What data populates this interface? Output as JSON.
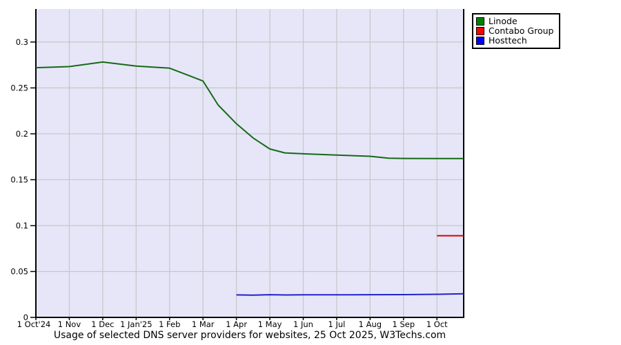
{
  "page": {
    "background": "#FFFFFF"
  },
  "chart_data": {
    "type": "line",
    "title": "Usage of selected DNS server providers for websites, 25 Oct 2025, W3Techs.com",
    "xlabel": "",
    "ylabel": "",
    "x_unit": "months since 1 Oct 2024",
    "xlim_months": [
      0,
      12.8
    ],
    "ylim": [
      0,
      0.336
    ],
    "grid": true,
    "plot_bg": "#E6E6F8",
    "grid_color": "#C6C6C6",
    "axis_color": "#000000",
    "legend_position": "top-right-outside",
    "x_ticks": [
      {
        "m": 0,
        "label": "1 Oct'24"
      },
      {
        "m": 1,
        "label": "1 Nov"
      },
      {
        "m": 2,
        "label": "1 Dec"
      },
      {
        "m": 3,
        "label": "1 Jan'25"
      },
      {
        "m": 4,
        "label": "1 Feb"
      },
      {
        "m": 5,
        "label": "1 Mar"
      },
      {
        "m": 6,
        "label": "1 Apr"
      },
      {
        "m": 7,
        "label": "1 May"
      },
      {
        "m": 8,
        "label": "1 Jun"
      },
      {
        "m": 9,
        "label": "1 Jul"
      },
      {
        "m": 10,
        "label": "1 Aug"
      },
      {
        "m": 11,
        "label": "1 Sep"
      },
      {
        "m": 12,
        "label": "1 Oct"
      }
    ],
    "y_ticks": [
      {
        "value": 0,
        "label": "0"
      },
      {
        "value": 0.05,
        "label": "0.05"
      },
      {
        "value": 0.1,
        "label": "0.1"
      },
      {
        "value": 0.15,
        "label": "0.15"
      },
      {
        "value": 0.2,
        "label": "0.2"
      },
      {
        "value": 0.25,
        "label": "0.25"
      },
      {
        "value": 0.3,
        "label": "0.3"
      }
    ],
    "series": [
      {
        "name": "Linode",
        "color": "#156915",
        "legend_color": "#008000",
        "points": [
          [
            0,
            0.272
          ],
          [
            1,
            0.2732
          ],
          [
            2,
            0.2782
          ],
          [
            3,
            0.2738
          ],
          [
            4,
            0.2715
          ],
          [
            4.65,
            0.2625
          ],
          [
            5,
            0.2575
          ],
          [
            5.45,
            0.2315
          ],
          [
            6,
            0.211
          ],
          [
            6.5,
            0.1955
          ],
          [
            7,
            0.1835
          ],
          [
            7.45,
            0.1792
          ],
          [
            8,
            0.1782
          ],
          [
            9,
            0.1768
          ],
          [
            10,
            0.1755
          ],
          [
            10.55,
            0.1735
          ],
          [
            11,
            0.1732
          ],
          [
            12,
            0.173
          ],
          [
            12.8,
            0.173
          ]
        ]
      },
      {
        "name": "Contabo Group",
        "color": "#D40000",
        "legend_color": "#FF0000",
        "points": [
          [
            12,
            0.089
          ],
          [
            12.8,
            0.089
          ]
        ]
      },
      {
        "name": "Hosttech",
        "color": "#2121CC",
        "legend_color": "#0000FF",
        "points": [
          [
            6,
            0.0245
          ],
          [
            6.5,
            0.0243
          ],
          [
            7,
            0.0247
          ],
          [
            7.5,
            0.0244
          ],
          [
            8,
            0.0246
          ],
          [
            9,
            0.0246
          ],
          [
            10,
            0.0247
          ],
          [
            11,
            0.0248
          ],
          [
            12,
            0.0252
          ],
          [
            12.8,
            0.0258
          ]
        ]
      }
    ]
  }
}
